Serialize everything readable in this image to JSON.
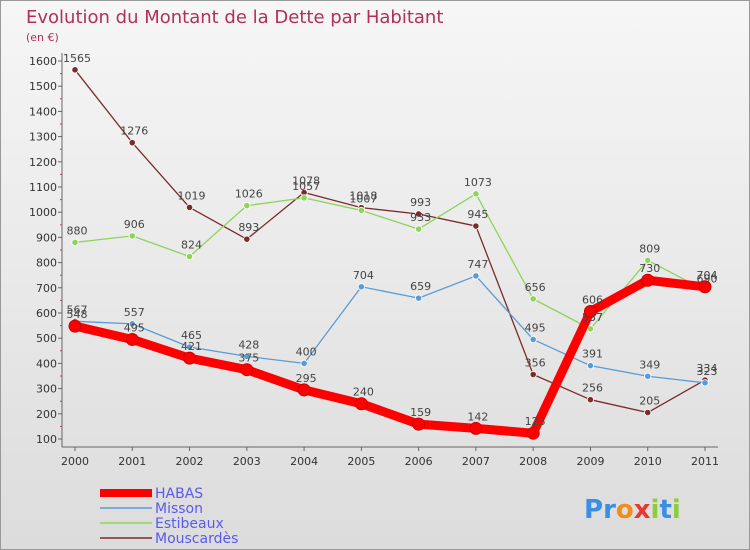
{
  "chart_data": {
    "type": "line",
    "title": "Evolution du Montant de la Dette par Habitant",
    "subtitle": "(en €)",
    "xlabel": "",
    "ylabel": "",
    "categories": [
      "2000",
      "2001",
      "2002",
      "2003",
      "2004",
      "2005",
      "2006",
      "2007",
      "2008",
      "2009",
      "2010",
      "2011"
    ],
    "ylim": [
      100,
      1600
    ],
    "yticks": [
      100,
      200,
      300,
      400,
      500,
      600,
      700,
      800,
      900,
      1000,
      1100,
      1200,
      1300,
      1400,
      1500,
      1600
    ],
    "grid": false,
    "legend_position": "bottom-left",
    "series": [
      {
        "name": "HABAS",
        "color": "#ff0000",
        "values": [
          548,
          495,
          421,
          375,
          295,
          240,
          159,
          142,
          123,
          606,
          730,
          704
        ]
      },
      {
        "name": "Misson",
        "color": "#5a9bd5",
        "values": [
          567,
          557,
          465,
          428,
          400,
          704,
          659,
          747,
          495,
          391,
          349,
          323
        ]
      },
      {
        "name": "Estibeaux",
        "color": "#8ed35a",
        "values": [
          880,
          906,
          824,
          1026,
          1057,
          1007,
          933,
          1073,
          656,
          537,
          809,
          690
        ]
      },
      {
        "name": "Mouscardès",
        "color": "#7a2b2b",
        "values": [
          1565,
          1276,
          1019,
          893,
          1078,
          1018,
          993,
          945,
          356,
          256,
          205,
          334
        ]
      }
    ]
  },
  "logo": {
    "text": "Proxiti",
    "letters": [
      "P",
      "r",
      "o",
      "x",
      "i",
      "t",
      "i"
    ],
    "colors": [
      "#3a8ee6",
      "#3a8ee6",
      "#f28c1a",
      "#e63a2e",
      "#8ccd3c",
      "#3a8ee6",
      "#8ccd3c"
    ]
  }
}
